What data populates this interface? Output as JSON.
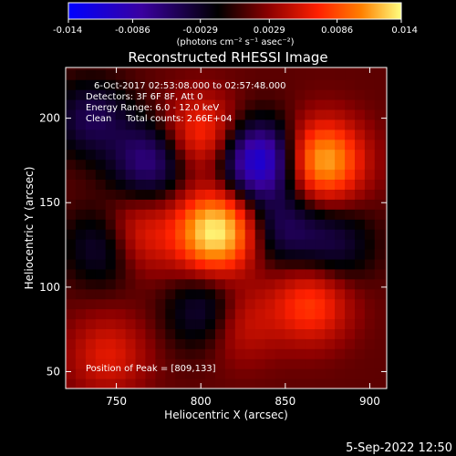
{
  "chart_data": {
    "type": "heatmap",
    "title": "Reconstructed RHESSI Image",
    "xlabel": "Heliocentric X (arcsec)",
    "ylabel": "Heliocentric Y (arcsec)",
    "xlim": [
      720,
      910
    ],
    "ylim": [
      40,
      230
    ],
    "x_ticks": [
      "750",
      "800",
      "850",
      "900"
    ],
    "y_ticks": [
      "50",
      "100",
      "150",
      "200"
    ],
    "x_tick_values": [
      750,
      800,
      850,
      900
    ],
    "y_tick_values": [
      50,
      100,
      150,
      200
    ],
    "colorbar": {
      "min": -0.014,
      "max": 0.014,
      "tick_labels": [
        "-0.014",
        "-0.0086",
        "-0.0029",
        "0.0029",
        "0.0086",
        "0.014"
      ],
      "tick_values": [
        -0.014,
        -0.0086,
        -0.0029,
        0.0029,
        0.0086,
        0.014
      ],
      "units_label": "(photons cm⁻² s⁻¹ asec⁻²)",
      "colors": [
        "#0000ff",
        "#3a00a0",
        "#000000",
        "#8b0000",
        "#ff2000",
        "#ff8000",
        "#ffff80"
      ]
    },
    "info_lines": [
      "6-Oct-2017 02:53:08.000 to 02:57:48.000",
      "Detectors: 3F 6F 8F, Att 0",
      "Energy Range: 6.0 - 12.0 keV",
      "Clean     Total counts: 2.66E+04"
    ],
    "peak_label": "Position of Peak = [809,133]",
    "peak": [
      809,
      133
    ],
    "features": [
      {
        "x": 809,
        "y": 133,
        "value": 0.014
      },
      {
        "x": 872,
        "y": 175,
        "value": 0.011
      },
      {
        "x": 760,
        "y": 130,
        "value": 0.006
      },
      {
        "x": 800,
        "y": 190,
        "value": 0.006
      },
      {
        "x": 865,
        "y": 90,
        "value": 0.006
      },
      {
        "x": 820,
        "y": 80,
        "value": 0.005
      },
      {
        "x": 745,
        "y": 60,
        "value": 0.004
      },
      {
        "x": 835,
        "y": 175,
        "value": -0.012
      },
      {
        "x": 848,
        "y": 135,
        "value": -0.005
      },
      {
        "x": 770,
        "y": 175,
        "value": -0.007
      },
      {
        "x": 745,
        "y": 125,
        "value": -0.006
      },
      {
        "x": 805,
        "y": 85,
        "value": -0.006
      },
      {
        "x": 880,
        "y": 125,
        "value": -0.004
      },
      {
        "x": 735,
        "y": 200,
        "value": -0.005
      }
    ]
  },
  "timestamp": "5-Sep-2022 12:50"
}
